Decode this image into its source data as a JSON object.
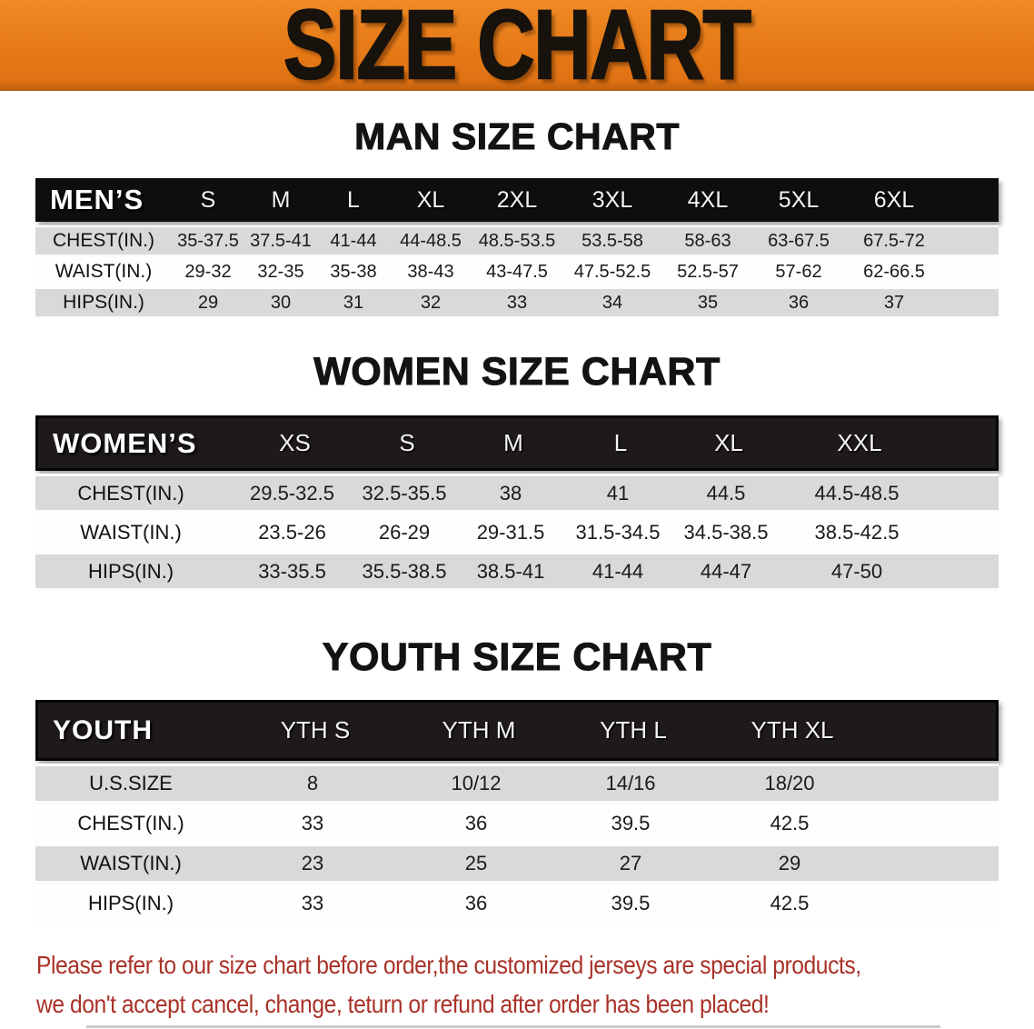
{
  "banner": {
    "title": "SIZE CHART",
    "bg_color": "#E67A17",
    "text_color": "#18120C"
  },
  "men": {
    "heading": "MAN SIZE CHART",
    "corner": "MEN’S",
    "cols": [
      "S",
      "M",
      "L",
      "XL",
      "2XL",
      "3XL",
      "4XL",
      "5XL",
      "6XL"
    ],
    "rows": [
      {
        "label": "CHEST(IN.)",
        "v": [
          "35-37.5",
          "37.5-41",
          "41-44",
          "44-48.5",
          "48.5-53.5",
          "53.5-58",
          "58-63",
          "63-67.5",
          "67.5-72"
        ]
      },
      {
        "label": "WAIST(IN.)",
        "v": [
          "29-32",
          "32-35",
          "35-38",
          "38-43",
          "43-47.5",
          "47.5-52.5",
          "52.5-57",
          "57-62",
          "62-66.5"
        ]
      },
      {
        "label": "HIPS(IN.)",
        "v": [
          "29",
          "30",
          "31",
          "32",
          "33",
          "34",
          "35",
          "36",
          "37"
        ]
      }
    ]
  },
  "women": {
    "heading": "WOMEN SIZE CHART",
    "corner": "WOMEN’S",
    "cols": [
      "XS",
      "S",
      "M",
      "L",
      "XL",
      "XXL"
    ],
    "rows": [
      {
        "label": "CHEST(IN.)",
        "v": [
          "29.5-32.5",
          "32.5-35.5",
          "38",
          "41",
          "44.5",
          "44.5-48.5"
        ]
      },
      {
        "label": "WAIST(IN.)",
        "v": [
          "23.5-26",
          "26-29",
          "29-31.5",
          "31.5-34.5",
          "34.5-38.5",
          "38.5-42.5"
        ]
      },
      {
        "label": "HIPS(IN.)",
        "v": [
          "33-35.5",
          "35.5-38.5",
          "38.5-41",
          "41-44",
          "44-47",
          "47-50"
        ]
      }
    ]
  },
  "youth": {
    "heading": "YOUTH SIZE CHART",
    "corner": "YOUTH",
    "cols": [
      "YTH S",
      "YTH M",
      "YTH L",
      "YTH XL"
    ],
    "rows": [
      {
        "label": "U.S.SIZE",
        "v": [
          "8",
          "10/12",
          "14/16",
          "18/20"
        ]
      },
      {
        "label": "CHEST(IN.)",
        "v": [
          "33",
          "36",
          "39.5",
          "42.5"
        ]
      },
      {
        "label": "WAIST(IN.)",
        "v": [
          "23",
          "25",
          "27",
          "29"
        ]
      },
      {
        "label": "HIPS(IN.)",
        "v": [
          "33",
          "36",
          "39.5",
          "42.5"
        ]
      }
    ]
  },
  "footnote": {
    "line1": "Please refer to our size chart before order,the customized jerseys are special products,",
    "line2": "we don't accept cancel, change, teturn or refund after order has been placed!",
    "color": "#A93228"
  }
}
